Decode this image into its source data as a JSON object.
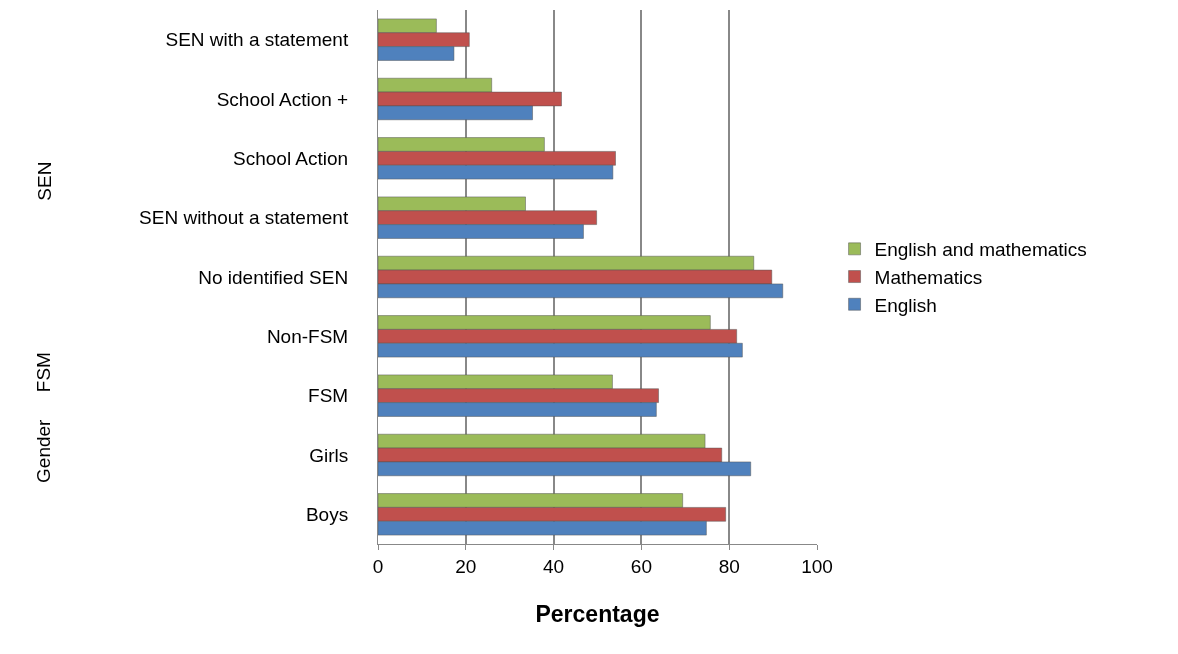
{
  "chart_data": {
    "type": "bar",
    "orientation": "horizontal",
    "xlabel": "Percentage",
    "categories": [
      "SEN with a statement",
      "School Action +",
      "School Action",
      "SEN without a statement",
      "No identified SEN",
      "Non-FSM",
      "FSM",
      "Girls",
      "Boys"
    ],
    "series": [
      {
        "name": "English and mathematics",
        "color": "#9bbb59",
        "values": [
          13.3,
          25.9,
          37.9,
          33.6,
          85.6,
          75.7,
          53.4,
          74.5,
          69.4
        ]
      },
      {
        "name": "Mathematics",
        "color": "#c0504d",
        "values": [
          20.8,
          41.8,
          54.1,
          49.8,
          89.7,
          81.7,
          63.9,
          78.3,
          79.2
        ]
      },
      {
        "name": "English",
        "color": "#4f81bd",
        "values": [
          17.3,
          35.2,
          53.5,
          46.8,
          92.2,
          83.0,
          63.4,
          84.9,
          74.8
        ]
      }
    ],
    "xlim": [
      0,
      100
    ],
    "xticks": [
      0,
      20,
      40,
      60,
      80,
      100
    ],
    "grid": "x",
    "legend": "right",
    "annotations": [
      "SEN",
      "FSM",
      "Gender"
    ]
  }
}
